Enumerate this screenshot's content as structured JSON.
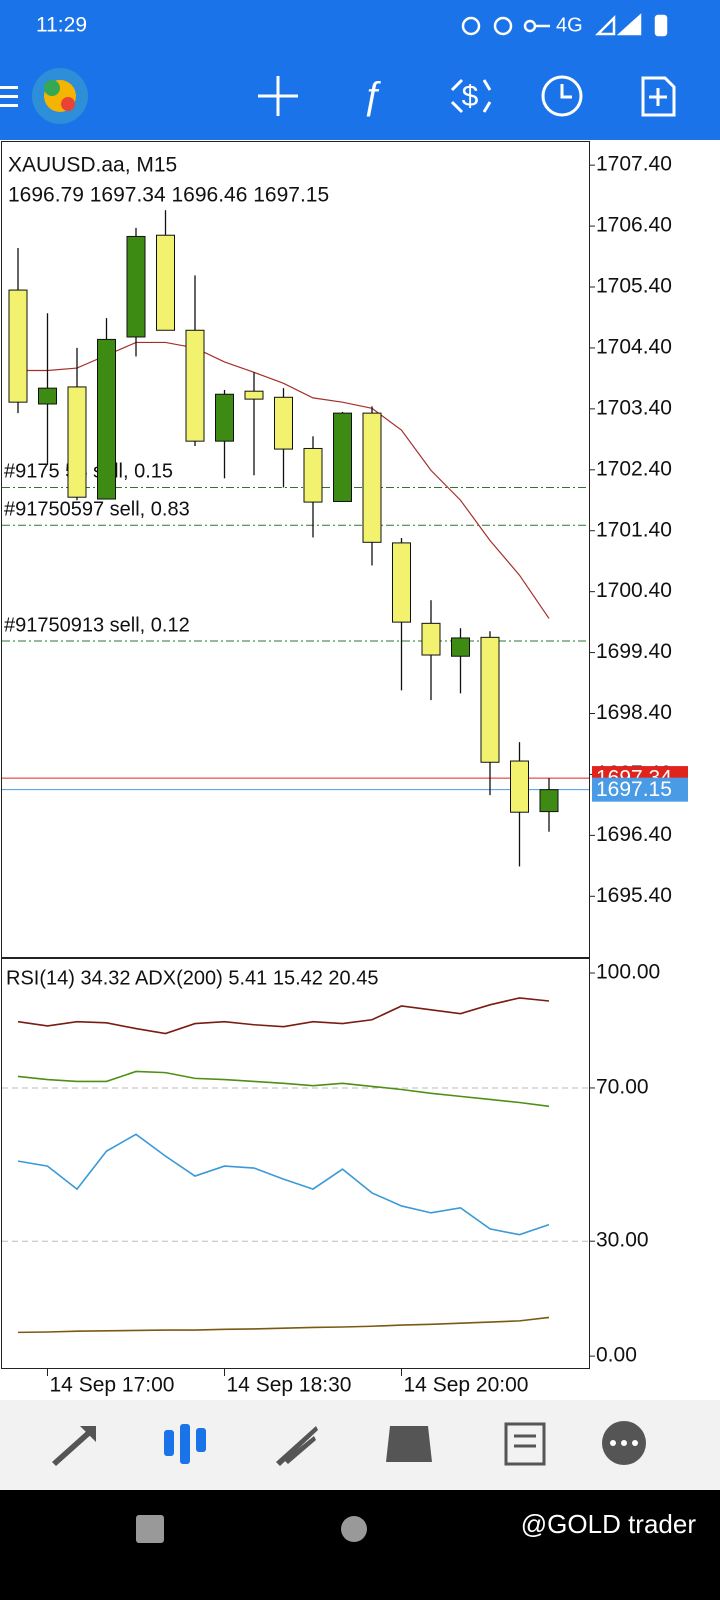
{
  "status_bar": {
    "time": "11:29",
    "network": "4G"
  },
  "chart_data": [
    {
      "type": "candlestick",
      "title": "XAUUSD.aa, M15",
      "ohlc_label": "1696.79 1697.34 1696.46 1697.15",
      "categories": [
        null,
        "14 Sep 17:00",
        null,
        null,
        null,
        null,
        null,
        "14 Sep 18:30",
        null,
        null,
        null,
        null,
        null,
        "14 Sep 20:00",
        null,
        null,
        null,
        null,
        null
      ],
      "open": [
        1705.35,
        1703.48,
        1703.76,
        1701.92,
        1704.58,
        1706.25,
        1704.69,
        1702.87,
        1703.69,
        1703.59,
        1702.75,
        1701.88,
        1703.33,
        1701.2,
        1699.88,
        1699.34,
        1699.65,
        1697.62,
        1696.79
      ],
      "high": [
        1706.04,
        1704.97,
        1704.4,
        1704.89,
        1706.37,
        1706.66,
        1705.59,
        1703.71,
        1704.0,
        1703.74,
        1702.95,
        1703.35,
        1703.44,
        1701.28,
        1700.26,
        1699.8,
        1699.75,
        1697.93,
        1697.34
      ],
      "low": [
        1703.33,
        1702.48,
        1701.9,
        1701.92,
        1704.26,
        1704.69,
        1702.79,
        1702.26,
        1702.31,
        1702.11,
        1701.29,
        1701.88,
        1700.83,
        1698.78,
        1698.62,
        1698.73,
        1697.06,
        1695.89,
        1696.46
      ],
      "close": [
        1703.51,
        1703.74,
        1701.95,
        1704.54,
        1706.23,
        1704.69,
        1702.87,
        1703.64,
        1703.56,
        1702.74,
        1701.87,
        1703.33,
        1701.21,
        1699.9,
        1699.36,
        1699.64,
        1697.6,
        1696.78,
        1697.15
      ],
      "up_color": "#3d8b12",
      "down_color": "#f2f26e",
      "moving_average": {
        "color": "#a5302a",
        "values": [
          1704.03,
          1704.03,
          1704.07,
          1704.28,
          1704.49,
          1704.49,
          1704.4,
          1704.17,
          1704.0,
          1703.82,
          1703.58,
          1703.51,
          1703.41,
          1703.05,
          1702.39,
          1701.9,
          1701.24,
          1700.67,
          1699.96
        ]
      },
      "orders": [
        {
          "label": "#9175  54  sell, 0.15",
          "value": 1702.11
        },
        {
          "label": "#91750597 sell, 0.83",
          "value": 1701.49
        },
        {
          "label": "#91750913 sell, 0.12",
          "value": 1699.59
        }
      ],
      "ask": {
        "value": 1697.34,
        "color": "#e0241c"
      },
      "bid": {
        "value": 1697.15,
        "color": "#4a9be6"
      },
      "ylim": [
        1694.42,
        1707.78
      ],
      "yticks": [
        {
          "value": 1695.4,
          "label": "1695.40"
        },
        {
          "value": 1696.4,
          "label": "1696.40"
        },
        {
          "value": 1697.4,
          "label": "1697.40"
        },
        {
          "value": 1698.4,
          "label": "1698.40"
        },
        {
          "value": 1699.4,
          "label": "1699.40"
        },
        {
          "value": 1700.4,
          "label": "1700.40"
        },
        {
          "value": 1701.4,
          "label": "1701.40"
        },
        {
          "value": 1702.4,
          "label": "1702.40"
        },
        {
          "value": 1703.4,
          "label": "1703.40"
        },
        {
          "value": 1704.4,
          "label": "1704.40"
        },
        {
          "value": 1705.4,
          "label": "1705.40"
        },
        {
          "value": 1706.4,
          "label": "1706.40"
        },
        {
          "value": 1707.4,
          "label": "1707.40"
        }
      ]
    },
    {
      "type": "line",
      "title": "RSI(14) 34.32 ADX(200) 5.41 15.42 20.45",
      "series": [
        {
          "color": "#7a1c12",
          "values": [
            87.3,
            86.2,
            87.3,
            87.0,
            85.5,
            84.2,
            86.8,
            87.3,
            86.5,
            86.0,
            87.3,
            86.8,
            87.8,
            91.4,
            90.4,
            89.4,
            91.7,
            93.5,
            92.7
          ]
        },
        {
          "color": "#4f8f14",
          "values": [
            73.0,
            72.2,
            71.7,
            71.7,
            74.3,
            74.0,
            72.5,
            72.2,
            71.7,
            71.2,
            70.6,
            71.2,
            70.4,
            69.6,
            68.6,
            67.8,
            67.0,
            66.2,
            65.2
          ]
        },
        {
          "color": "#3a9ad8",
          "values": [
            50.9,
            49.6,
            43.6,
            53.5,
            57.9,
            52.2,
            47.0,
            49.6,
            49.1,
            46.2,
            43.6,
            48.8,
            42.6,
            39.2,
            37.4,
            38.7,
            33.2,
            31.7,
            34.32
          ]
        },
        {
          "color": "#7a5a12",
          "values": [
            6.2,
            6.3,
            6.5,
            6.6,
            6.7,
            6.8,
            6.8,
            7.0,
            7.1,
            7.3,
            7.5,
            7.6,
            7.8,
            8.1,
            8.3,
            8.6,
            8.9,
            9.2,
            10.1
          ]
        }
      ],
      "levels": [
        30,
        70
      ],
      "ylim": [
        -3.1,
        103.4
      ],
      "yticks": [
        {
          "value": 0,
          "label": "0.00"
        },
        {
          "value": 30,
          "label": "30.00"
        },
        {
          "value": 70,
          "label": "70.00"
        },
        {
          "value": 100,
          "label": "100.00"
        }
      ]
    }
  ],
  "watermark": "@GOLD trader"
}
